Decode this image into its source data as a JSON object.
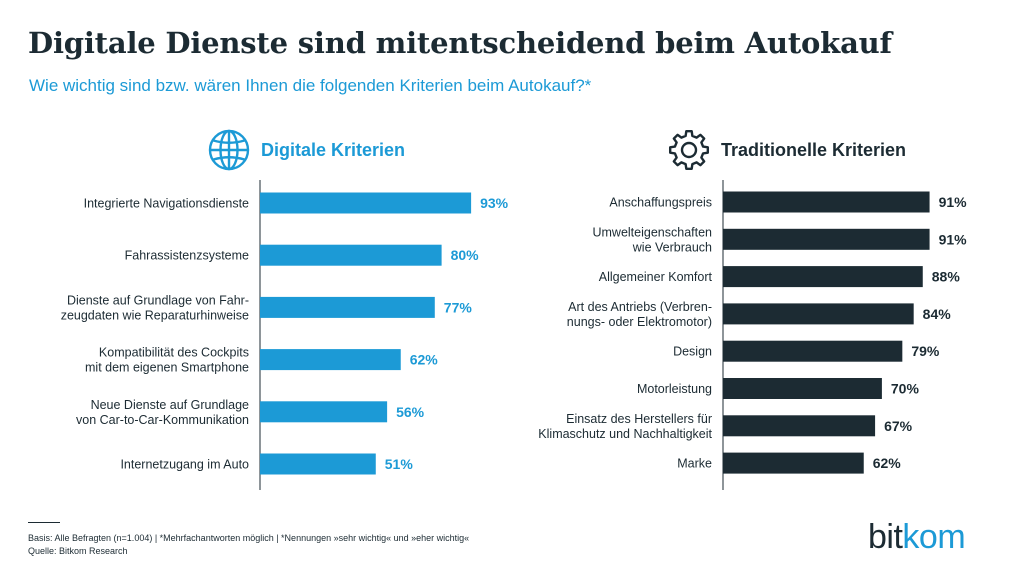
{
  "title": "Digitale Dienste sind mitentscheidend beim Autokauf",
  "subtitle": "Wie wichtig sind bzw. wären Ihnen die folgenden Kriterien beim Autokauf?*",
  "colors": {
    "digital": "#1c9ad6",
    "traditional": "#1c2b33",
    "text": "#1c2b33"
  },
  "icons": {
    "digital": "globe-icon",
    "traditional": "gear-icon"
  },
  "chart_data": [
    {
      "type": "bar",
      "orientation": "horizontal",
      "title": "Digitale Kriterien",
      "unit": "%",
      "categories": [
        [
          "Integrierte Navigationsdienste"
        ],
        [
          "Fahrassistenzsysteme"
        ],
        [
          "Dienste auf Grundlage von Fahr-",
          "zeugdaten wie Reparaturhinweise"
        ],
        [
          "Kompatibilität des Cockpits",
          "mit dem eigenen Smartphone"
        ],
        [
          "Neue Dienste auf Grundlage",
          "von Car-to-Car-Kommunikation"
        ],
        [
          "Internetzugang im Auto"
        ]
      ],
      "values": [
        93,
        80,
        77,
        62,
        56,
        51
      ],
      "labels": [
        "93%",
        "80%",
        "77%",
        "62%",
        "56%",
        "51%"
      ],
      "xlim": [
        0,
        100
      ]
    },
    {
      "type": "bar",
      "orientation": "horizontal",
      "title": "Traditionelle Kriterien",
      "unit": "%",
      "categories": [
        [
          "Anschaffungspreis"
        ],
        [
          "Umwelteigenschaften",
          "wie Verbrauch"
        ],
        [
          "Allgemeiner Komfort"
        ],
        [
          "Art des Antriebs (Verbren-",
          "nungs- oder Elektromotor)"
        ],
        [
          "Design"
        ],
        [
          "Motorleistung"
        ],
        [
          "Einsatz des Herstellers für",
          "Klimaschutz und Nachhaltigkeit"
        ],
        [
          "Marke"
        ]
      ],
      "values": [
        91,
        91,
        88,
        84,
        79,
        70,
        67,
        62
      ],
      "labels": [
        "91%",
        "91%",
        "88%",
        "84%",
        "79%",
        "70%",
        "67%",
        "62%"
      ],
      "xlim": [
        0,
        100
      ]
    }
  ],
  "footnote": {
    "basis": "Basis: Alle Befragten (n=1.004) | *Mehrfachantworten möglich | *Nennungen »sehr wichtig« und »eher wichtig«",
    "source": "Quelle: Bitkom Research"
  },
  "brand": {
    "part1": "bit",
    "part2": "kom"
  }
}
